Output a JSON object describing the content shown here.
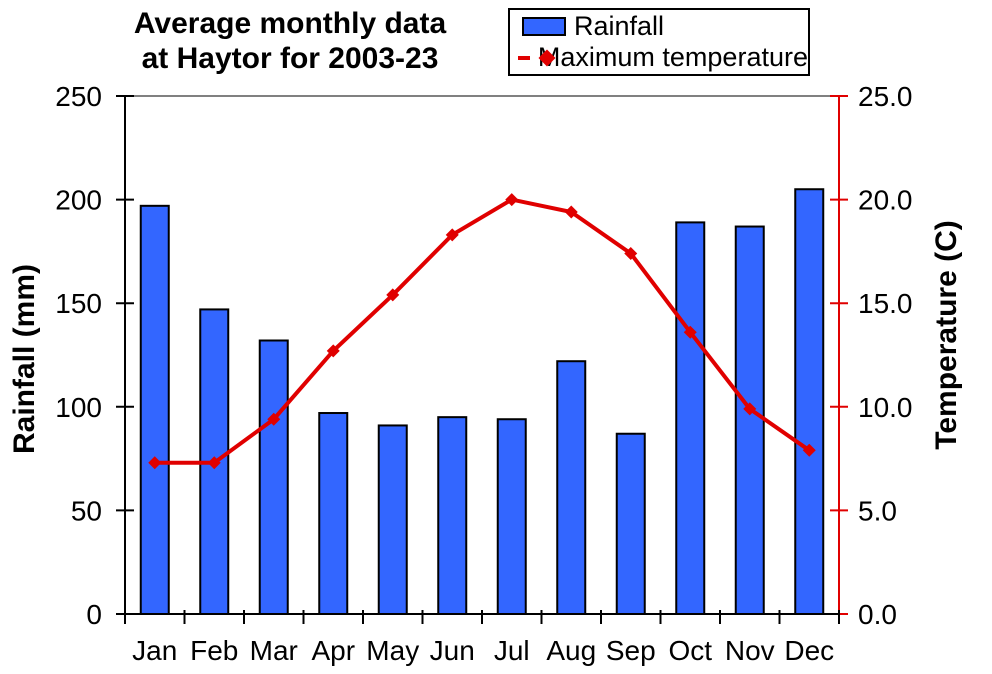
{
  "chart_data": {
    "type": "combo-bar-line",
    "title_lines": [
      "Average monthly data",
      "at Haytor for 2003-23"
    ],
    "categories": [
      "Jan",
      "Feb",
      "Mar",
      "Apr",
      "May",
      "Jun",
      "Jul",
      "Aug",
      "Sep",
      "Oct",
      "Nov",
      "Dec"
    ],
    "series": [
      {
        "name": "Rainfall",
        "type": "bar",
        "axis": "left",
        "color": "#3366FF",
        "border_color": "#000000",
        "values": [
          197,
          147,
          132,
          97,
          91,
          95,
          94,
          122,
          87,
          189,
          187,
          205
        ]
      },
      {
        "name": "Maximum temperature",
        "type": "line",
        "axis": "right",
        "color": "#E00000",
        "marker": "diamond",
        "values": [
          7.3,
          7.3,
          9.4,
          12.7,
          15.4,
          18.3,
          20.0,
          19.4,
          17.4,
          13.6,
          9.9,
          7.9
        ]
      }
    ],
    "left_axis": {
      "label": "Rainfall (mm)",
      "min": 0,
      "max": 250,
      "ticks": [
        "0",
        "50",
        "100",
        "150",
        "200",
        "250"
      ],
      "color": "#000000"
    },
    "right_axis": {
      "label": "Temperature (C)",
      "min": 0,
      "max": 25,
      "ticks": [
        "0.0",
        "5.0",
        "10.0",
        "15.0",
        "20.0",
        "25.0"
      ],
      "color": "#E00000"
    },
    "legend": {
      "position": "top-right",
      "entries": [
        "Rainfall",
        "Maximum temperature"
      ]
    },
    "layout_hints": {
      "top_border_color": "#808080",
      "gridlines": "top-only",
      "background": "#FFFFFF"
    }
  }
}
